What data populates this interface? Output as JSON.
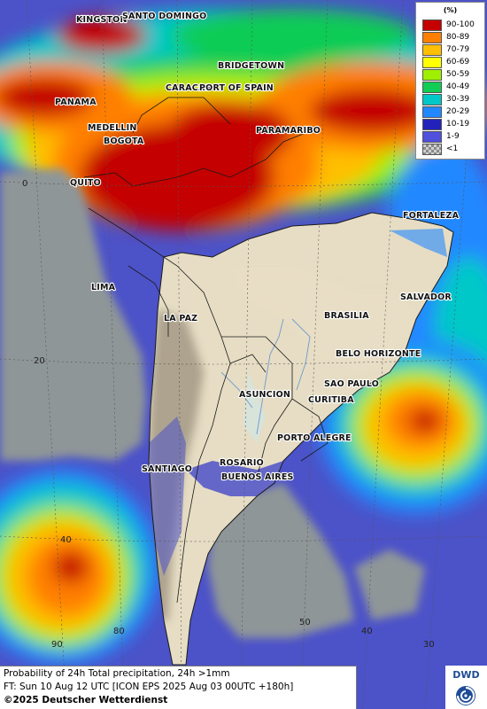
{
  "colors": {
    "ocean_base": "#4c52c8",
    "land_base": "#e4dcc4",
    "sea_grey": "#8f9698",
    "scale": [
      "#c40000",
      "#ff7f00",
      "#ffbf00",
      "#ffff00",
      "#9ff000",
      "#11cc55",
      "#00c8c8",
      "#2288ff",
      "#5050dc"
    ]
  },
  "legend": {
    "unit": "(%)",
    "items": [
      {
        "label": "90-100",
        "color": "#c40000"
      },
      {
        "label": "80-89",
        "color": "#ff7f00"
      },
      {
        "label": "70-79",
        "color": "#ffbf00"
      },
      {
        "label": "60-69",
        "color": "#ffff00"
      },
      {
        "label": "50-59",
        "color": "#9ff000"
      },
      {
        "label": "40-49",
        "color": "#11cc55"
      },
      {
        "label": "30-39",
        "color": "#00c8c8"
      },
      {
        "label": "20-29",
        "color": "#2288ff"
      },
      {
        "label": "10-19",
        "color": "#2222bb"
      },
      {
        "label": "1-9",
        "color": "#5050dc"
      },
      {
        "label": "<1",
        "color": "checker"
      }
    ]
  },
  "cities": {
    "kingston": "KINGSTON",
    "santo_domingo": "SANTO DOMINGO",
    "bridgetown": "BRIDGETOWN",
    "caracas": "CARACAS",
    "port_of_spain": "PORT OF SPAIN",
    "panama": "PANAMA",
    "medellin": "MEDELLIN",
    "bogota": "BOGOTA",
    "paramaribo": "PARAMARIBO",
    "quito": "QUITO",
    "fortaleza": "FORTALEZA",
    "lima": "LIMA",
    "salvador": "SALVADOR",
    "la_paz": "LA PAZ",
    "brasilia": "BRASILIA",
    "belo_horizonte": "BELO HORIZONTE",
    "sao_paulo": "SAO PAULO",
    "asuncion": "ASUNCION",
    "curitiba": "CURITIBA",
    "porto_alegre": "PORTO ALEGRE",
    "santiago": "SANTIAGO",
    "rosario": "ROSARIO",
    "buenos_aires": "BUENOS AIRES"
  },
  "grid_labels": {
    "lat_0": "0",
    "lat_20": "20",
    "lat_40": "40",
    "lon_90": "90",
    "lon_80": "80",
    "lon_50": "50",
    "lon_40": "40",
    "lon_30": "30"
  },
  "footer": {
    "line1": "Probability of 24h Total precipitation, 24h >1mm",
    "line2": "FT: Sun 10 Aug 12 UTC [ICON EPS 2025 Aug 03 00UTC +180h]",
    "line3": "©2025 Deutscher Wetterdienst"
  },
  "logo": {
    "text": "DWD"
  }
}
